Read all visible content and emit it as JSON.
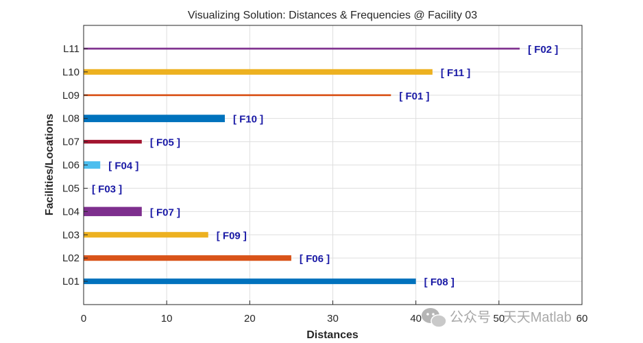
{
  "chart_data": {
    "type": "bar",
    "orientation": "horizontal",
    "title": "Visualizing Solution: Distances & Frequencies @ Facility 03",
    "xlabel": "Distances",
    "ylabel": "Facilities/Locations",
    "xlim": [
      0,
      60
    ],
    "xticks": [
      "0",
      "10",
      "20",
      "30",
      "40",
      "50",
      "60"
    ],
    "grid": true,
    "categories": [
      "L01",
      "L02",
      "L03",
      "L04",
      "L05",
      "L06",
      "L07",
      "L08",
      "L09",
      "L10",
      "L11"
    ],
    "values": [
      40,
      25,
      15,
      7,
      0,
      2,
      7,
      17,
      37,
      42,
      52.5
    ],
    "labels": [
      "[ F08 ]",
      "[ F06 ]",
      "[ F09 ]",
      "[ F07 ]",
      "[ F03 ]",
      "[ F04 ]",
      "[ F05 ]",
      "[ F10 ]",
      "[ F01 ]",
      "[ F11 ]",
      "[ F02 ]"
    ],
    "colors": [
      "#0072BD",
      "#D95319",
      "#EDB120",
      "#7E2F8E",
      "#77AC30",
      "#4DBEEE",
      "#A2142F",
      "#0072BD",
      "#D95319",
      "#EDB120",
      "#7E2F8E"
    ],
    "thickness": [
      3,
      3,
      3,
      5,
      1,
      4,
      2,
      4,
      1,
      3,
      1
    ]
  },
  "watermark": {
    "text": "公众号 · 天天Matlab",
    "icon": "wechat-icon"
  }
}
